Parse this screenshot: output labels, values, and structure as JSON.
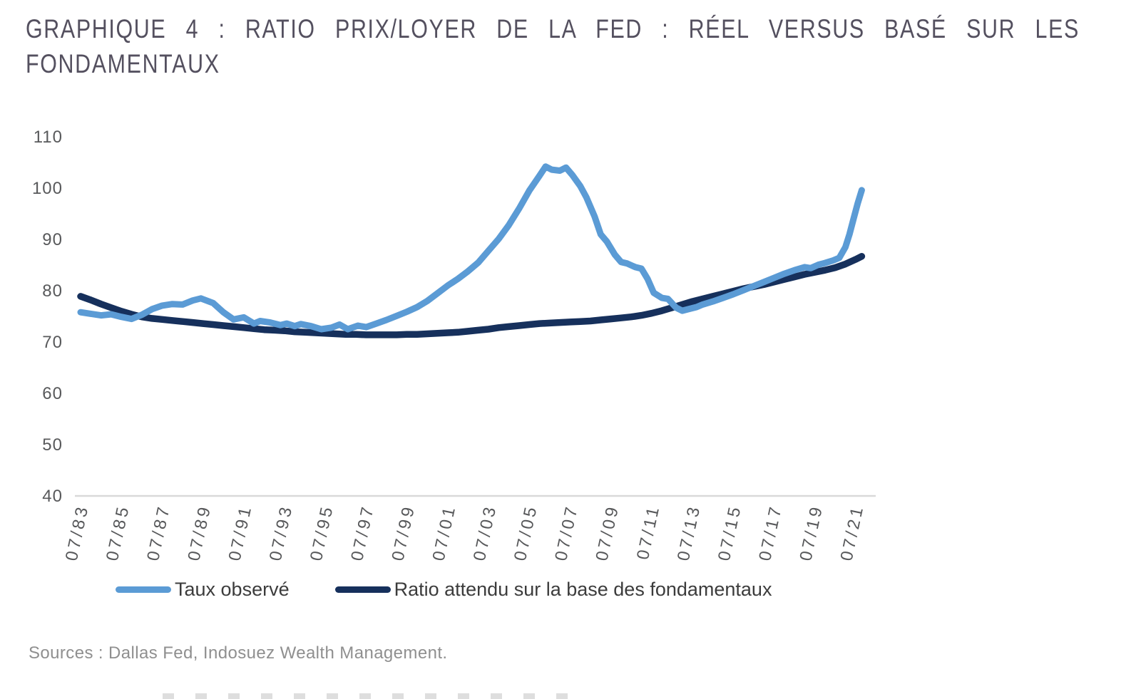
{
  "title": {
    "line1": "GRAPHIQUE 4 : RATIO PRIX/LOYER DE LA FED : RÉEL VERSUS BASÉ SUR LES",
    "line2": "FONDAMENTAUX"
  },
  "source_note": "Sources : Dallas Fed, Indosuez Wealth Management.",
  "colors": {
    "observed_blue": "#5b9bd5",
    "expected_navy": "#16305c",
    "axis_line": "#d9d9d9",
    "tick_text": "#58595b",
    "title_text": "#54505f",
    "legend_text": "#3c3c3c",
    "source_text": "#8f8f8f"
  },
  "chart_data": {
    "type": "line",
    "title": "GRAPHIQUE 4 : RATIO PRIX/LOYER DE LA FED : RÉEL VERSUS BASÉ SUR LES FONDAMENTAUX",
    "xlabel": "",
    "ylabel": "",
    "grid": false,
    "legend_position": "bottom",
    "ylim": [
      40,
      110
    ],
    "y_ticks": [
      110,
      100,
      90,
      80,
      70,
      60,
      50,
      40
    ],
    "x_ticks": [
      "07/83",
      "07/85",
      "07/87",
      "07/89",
      "07/91",
      "07/93",
      "07/95",
      "07/97",
      "07/99",
      "07/01",
      "07/03",
      "07/05",
      "07/07",
      "07/09",
      "07/11",
      "07/13",
      "07/15",
      "07/17",
      "07/19",
      "07/21"
    ],
    "x_unit": "month/year (July of every second year)",
    "series": [
      {
        "name": "Taux observé",
        "color": "#5b9bd5",
        "points": [
          [
            1983.5,
            75.8
          ],
          [
            1984,
            75.5
          ],
          [
            1984.5,
            75.2
          ],
          [
            1985,
            75.4
          ],
          [
            1985.5,
            74.9
          ],
          [
            1986,
            74.5
          ],
          [
            1986.5,
            75.3
          ],
          [
            1987,
            76.4
          ],
          [
            1987.5,
            77.1
          ],
          [
            1988,
            77.4
          ],
          [
            1988.5,
            77.3
          ],
          [
            1989,
            78.1
          ],
          [
            1989.4,
            78.5
          ],
          [
            1990,
            77.6
          ],
          [
            1990.5,
            75.8
          ],
          [
            1991,
            74.4
          ],
          [
            1991.5,
            74.8
          ],
          [
            1992,
            73.6
          ],
          [
            1992.3,
            74.1
          ],
          [
            1992.8,
            73.8
          ],
          [
            1993.3,
            73.3
          ],
          [
            1993.6,
            73.6
          ],
          [
            1994,
            73.1
          ],
          [
            1994.3,
            73.5
          ],
          [
            1994.8,
            73.1
          ],
          [
            1995.3,
            72.5
          ],
          [
            1995.8,
            72.8
          ],
          [
            1996.2,
            73.4
          ],
          [
            1996.6,
            72.5
          ],
          [
            1997.1,
            73.2
          ],
          [
            1997.5,
            72.9
          ],
          [
            1998,
            73.6
          ],
          [
            1998.5,
            74.3
          ],
          [
            1999,
            75.1
          ],
          [
            1999.5,
            75.9
          ],
          [
            2000,
            76.8
          ],
          [
            2000.5,
            78.0
          ],
          [
            2001,
            79.5
          ],
          [
            2001.5,
            81.0
          ],
          [
            2002,
            82.3
          ],
          [
            2002.5,
            83.8
          ],
          [
            2003,
            85.5
          ],
          [
            2003.5,
            87.8
          ],
          [
            2004,
            90.1
          ],
          [
            2004.5,
            92.8
          ],
          [
            2005,
            96.0
          ],
          [
            2005.5,
            99.5
          ],
          [
            2006,
            102.4
          ],
          [
            2006.3,
            104.2
          ],
          [
            2006.6,
            103.6
          ],
          [
            2007,
            103.4
          ],
          [
            2007.3,
            104.0
          ],
          [
            2007.6,
            102.6
          ],
          [
            2008,
            100.4
          ],
          [
            2008.3,
            98.2
          ],
          [
            2008.7,
            94.5
          ],
          [
            2009,
            91.0
          ],
          [
            2009.3,
            89.6
          ],
          [
            2009.7,
            87.0
          ],
          [
            2010,
            85.6
          ],
          [
            2010.3,
            85.3
          ],
          [
            2010.7,
            84.6
          ],
          [
            2011,
            84.3
          ],
          [
            2011.3,
            82.3
          ],
          [
            2011.6,
            79.6
          ],
          [
            2012,
            78.6
          ],
          [
            2012.3,
            78.4
          ],
          [
            2012.7,
            76.7
          ],
          [
            2013,
            76.1
          ],
          [
            2013.3,
            76.4
          ],
          [
            2013.7,
            76.8
          ],
          [
            2014,
            77.3
          ],
          [
            2014.5,
            77.9
          ],
          [
            2015,
            78.6
          ],
          [
            2015.5,
            79.3
          ],
          [
            2016,
            80.1
          ],
          [
            2016.5,
            80.9
          ],
          [
            2017,
            81.7
          ],
          [
            2017.5,
            82.5
          ],
          [
            2018,
            83.3
          ],
          [
            2018.5,
            84.0
          ],
          [
            2019,
            84.6
          ],
          [
            2019.3,
            84.4
          ],
          [
            2019.7,
            85.1
          ],
          [
            2020,
            85.4
          ],
          [
            2020.4,
            85.9
          ],
          [
            2020.7,
            86.4
          ],
          [
            2021,
            88.5
          ],
          [
            2021.2,
            91.0
          ],
          [
            2021.4,
            94.0
          ],
          [
            2021.6,
            97.0
          ],
          [
            2021.8,
            99.6
          ]
        ]
      },
      {
        "name": "Ratio attendu sur la base des fondamentaux",
        "color": "#16305c",
        "points": [
          [
            1983.5,
            78.9
          ],
          [
            1984,
            78.2
          ],
          [
            1984.5,
            77.4
          ],
          [
            1985,
            76.7
          ],
          [
            1985.5,
            76.0
          ],
          [
            1986,
            75.4
          ],
          [
            1986.5,
            74.9
          ],
          [
            1987,
            74.6
          ],
          [
            1987.5,
            74.4
          ],
          [
            1988,
            74.2
          ],
          [
            1988.5,
            74.0
          ],
          [
            1989,
            73.8
          ],
          [
            1989.5,
            73.6
          ],
          [
            1990,
            73.4
          ],
          [
            1990.5,
            73.2
          ],
          [
            1991,
            73.0
          ],
          [
            1991.5,
            72.8
          ],
          [
            1992,
            72.6
          ],
          [
            1992.5,
            72.4
          ],
          [
            1993,
            72.3
          ],
          [
            1993.5,
            72.2
          ],
          [
            1994,
            72.0
          ],
          [
            1994.5,
            71.9
          ],
          [
            1995,
            71.8
          ],
          [
            1995.5,
            71.7
          ],
          [
            1996,
            71.6
          ],
          [
            1996.5,
            71.5
          ],
          [
            1997,
            71.5
          ],
          [
            1997.5,
            71.4
          ],
          [
            1998,
            71.4
          ],
          [
            1998.5,
            71.4
          ],
          [
            1999,
            71.4
          ],
          [
            1999.5,
            71.5
          ],
          [
            2000,
            71.5
          ],
          [
            2000.5,
            71.6
          ],
          [
            2001,
            71.7
          ],
          [
            2001.5,
            71.8
          ],
          [
            2002,
            71.9
          ],
          [
            2002.5,
            72.1
          ],
          [
            2003,
            72.3
          ],
          [
            2003.5,
            72.5
          ],
          [
            2004,
            72.8
          ],
          [
            2004.5,
            73.0
          ],
          [
            2005,
            73.2
          ],
          [
            2005.5,
            73.4
          ],
          [
            2006,
            73.6
          ],
          [
            2006.5,
            73.7
          ],
          [
            2007,
            73.8
          ],
          [
            2007.5,
            73.9
          ],
          [
            2008,
            74.0
          ],
          [
            2008.5,
            74.1
          ],
          [
            2009,
            74.3
          ],
          [
            2009.5,
            74.5
          ],
          [
            2010,
            74.7
          ],
          [
            2010.5,
            74.9
          ],
          [
            2011,
            75.2
          ],
          [
            2011.5,
            75.6
          ],
          [
            2012,
            76.1
          ],
          [
            2012.5,
            76.7
          ],
          [
            2013,
            77.3
          ],
          [
            2013.5,
            77.9
          ],
          [
            2014,
            78.4
          ],
          [
            2014.5,
            78.9
          ],
          [
            2015,
            79.4
          ],
          [
            2015.5,
            79.9
          ],
          [
            2016,
            80.4
          ],
          [
            2016.5,
            80.8
          ],
          [
            2017,
            81.2
          ],
          [
            2017.5,
            81.7
          ],
          [
            2018,
            82.2
          ],
          [
            2018.5,
            82.7
          ],
          [
            2019,
            83.2
          ],
          [
            2019.5,
            83.6
          ],
          [
            2020,
            84.0
          ],
          [
            2020.5,
            84.5
          ],
          [
            2021,
            85.2
          ],
          [
            2021.5,
            86.1
          ],
          [
            2021.8,
            86.7
          ]
        ]
      }
    ]
  },
  "legend": {
    "items": [
      {
        "label": "Taux observé",
        "color": "#5b9bd5"
      },
      {
        "label": "Ratio attendu sur la base des fondamentaux",
        "color": "#16305c"
      }
    ]
  }
}
